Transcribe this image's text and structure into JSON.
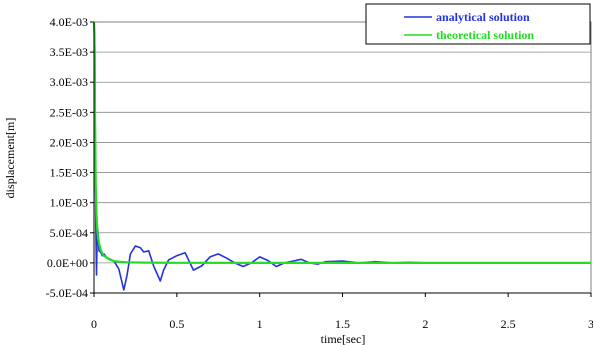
{
  "chart_data": {
    "type": "line",
    "xlabel": "time[sec]",
    "ylabel": "displacement[m]",
    "xlim": [
      0,
      3
    ],
    "ylim": [
      -0.0005,
      0.004
    ],
    "x_ticks": [
      0,
      0.5,
      1,
      1.5,
      2,
      2.5,
      3
    ],
    "x_tick_labels": [
      "0",
      "0.5",
      "1",
      "1.5",
      "2",
      "2.5",
      "3"
    ],
    "y_ticks": [
      -0.0005,
      0,
      0.0005,
      0.001,
      0.0015,
      0.002,
      0.0025,
      0.003,
      0.0035,
      0.004
    ],
    "y_tick_labels": [
      "-5.0E-04",
      "0.0E+00",
      "5.0E-04",
      "1.0E-03",
      "1.5E-03",
      "2.0E-03",
      "2.5E-03",
      "3.0E-03",
      "3.5E-03",
      "4.0E-03"
    ],
    "grid": "horizontal",
    "legend_position": "top-right",
    "series": [
      {
        "name": "analytical solution",
        "color": "#2233dd",
        "x": [
          0,
          0.005,
          0.01,
          0.015,
          0.02,
          0.025,
          0.03,
          0.04,
          0.05,
          0.06,
          0.08,
          0.1,
          0.12,
          0.15,
          0.18,
          0.2,
          0.22,
          0.25,
          0.28,
          0.3,
          0.33,
          0.36,
          0.4,
          0.42,
          0.45,
          0.5,
          0.55,
          0.6,
          0.65,
          0.7,
          0.75,
          0.8,
          0.85,
          0.9,
          0.95,
          1.0,
          1.05,
          1.1,
          1.15,
          1.2,
          1.25,
          1.3,
          1.35,
          1.4,
          1.5,
          1.6,
          1.7,
          1.8,
          1.9,
          2.0,
          2.2,
          2.4,
          2.6,
          2.8,
          3.0
        ],
        "y": [
          0.0035,
          0.0036,
          0.0008,
          -0.0002,
          0.0006,
          0.0005,
          0.0002,
          0.00018,
          0.00012,
          0.00015,
          8e-05,
          6e-05,
          3e-05,
          -0.0001,
          -0.00045,
          -0.0002,
          0.00015,
          0.00028,
          0.00025,
          0.00018,
          0.0002,
          -5e-05,
          -0.0003,
          -0.00012,
          5e-05,
          0.00012,
          0.00017,
          -0.00012,
          -5e-05,
          0.0001,
          0.00015,
          8e-05,
          0.0,
          -6e-05,
          0.0,
          0.0001,
          4e-05,
          -6e-05,
          0.0,
          3e-05,
          6e-05,
          0.0,
          -2e-05,
          2e-05,
          3e-05,
          0.0,
          2e-05,
          0.0,
          1e-05,
          0.0,
          0.0,
          0.0,
          0.0,
          0.0,
          0.0
        ]
      },
      {
        "name": "theoretical solution",
        "color": "#22dd22",
        "x": [
          0,
          0.003,
          0.006,
          0.01,
          0.015,
          0.02,
          0.025,
          0.03,
          0.04,
          0.05,
          0.06,
          0.08,
          0.1,
          0.12,
          0.15,
          0.2,
          0.3,
          0.5,
          1.0,
          1.5,
          2.0,
          2.5,
          3.0
        ],
        "y": [
          0.004,
          0.0038,
          0.0025,
          0.0013,
          0.0008,
          0.00055,
          0.00042,
          0.00033,
          0.00022,
          0.00016,
          0.00012,
          8e-05,
          5e-05,
          3e-05,
          2e-05,
          1e-05,
          5e-06,
          2e-06,
          0.0,
          0.0,
          0.0,
          0.0,
          0.0
        ]
      }
    ]
  }
}
